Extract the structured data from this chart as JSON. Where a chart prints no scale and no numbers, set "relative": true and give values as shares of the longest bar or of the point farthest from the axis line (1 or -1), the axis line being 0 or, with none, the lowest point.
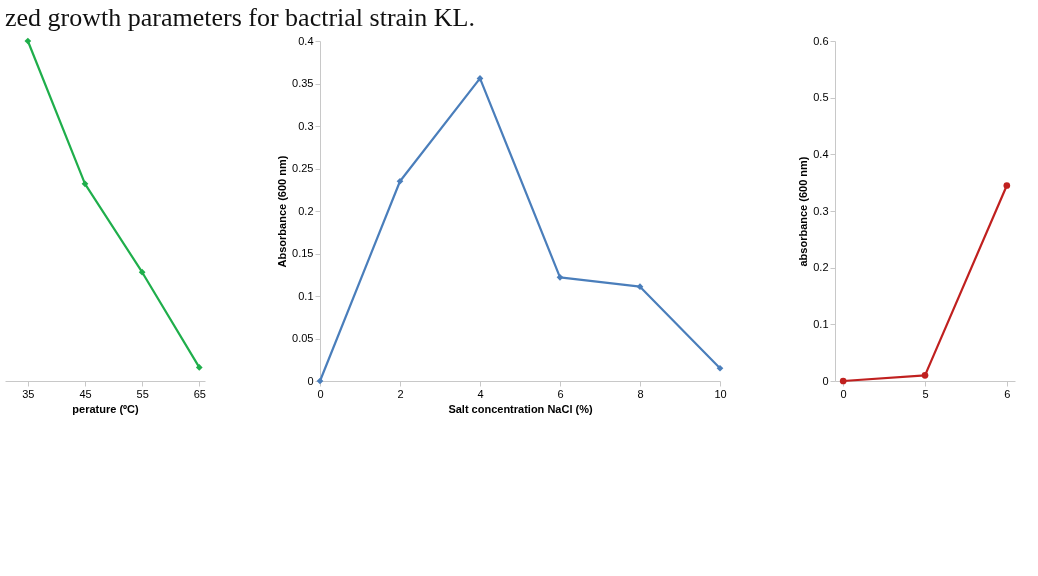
{
  "chart_data": [
    {
      "type": "line",
      "title": "zed growth parameters for bactrial strain KL.",
      "xlabel": "perature (ºC)",
      "relative": true,
      "x": [
        35,
        45,
        55,
        65
      ],
      "xlim": [
        31,
        66
      ],
      "xticks": [
        35,
        45,
        55,
        65
      ],
      "marker": "diamond",
      "grid": false,
      "series": [
        {
          "color": "#1fae4b",
          "values": [
            1,
            0.58,
            0.32,
            0.04
          ]
        }
      ]
    },
    {
      "type": "line",
      "xlabel": "Salt concentration NaCl (%)",
      "ylabel": "Absorbance (600 nm)",
      "x": [
        0,
        2,
        4,
        6,
        8,
        10
      ],
      "xlim": [
        0,
        10
      ],
      "xticks": [
        0,
        2,
        4,
        6,
        8,
        10
      ],
      "ylim": [
        0,
        0.4
      ],
      "yticks": [
        0,
        0.05,
        0.1,
        0.15,
        0.2,
        0.25,
        0.3,
        0.35,
        0.4
      ],
      "marker": "diamond",
      "grid": false,
      "series": [
        {
          "color": "#4a7ebb",
          "values": [
            0,
            0.235,
            0.356,
            0.122,
            0.111,
            0.015
          ]
        }
      ]
    },
    {
      "type": "line",
      "ylabel": "absorbance (600 nm)",
      "categories": [
        "0",
        "5",
        "6"
      ],
      "ylim": [
        0,
        0.6
      ],
      "yticks": [
        0,
        0.1,
        0.2,
        0.3,
        0.4,
        0.5,
        0.6
      ],
      "marker": "circle",
      "grid": false,
      "series": [
        {
          "color": "#c0201f",
          "values": [
            0,
            0.01,
            0.345
          ]
        }
      ]
    }
  ]
}
